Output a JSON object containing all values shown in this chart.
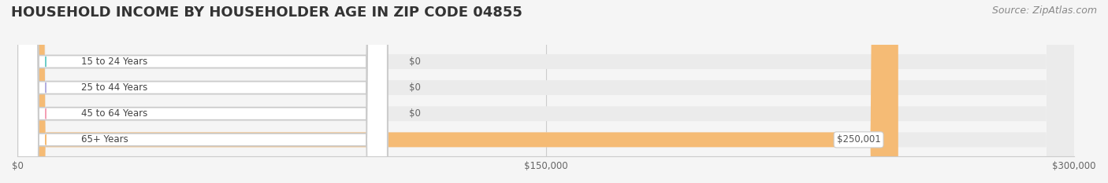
{
  "title": "HOUSEHOLD INCOME BY HOUSEHOLDER AGE IN ZIP CODE 04855",
  "source": "Source: ZipAtlas.com",
  "categories": [
    "15 to 24 Years",
    "25 to 44 Years",
    "45 to 64 Years",
    "65+ Years"
  ],
  "values": [
    0,
    0,
    0,
    250001
  ],
  "bar_colors": [
    "#6dcdc8",
    "#b3aee0",
    "#f4a0b5",
    "#f5bb75"
  ],
  "label_colors": [
    "#6dcdc8",
    "#b3aee0",
    "#f4a0b5",
    "#f5bb75"
  ],
  "xlim": [
    0,
    300000
  ],
  "xticks": [
    0,
    150000,
    300000
  ],
  "xtick_labels": [
    "$0",
    "$150,000",
    "$300,000"
  ],
  "background_color": "#f5f5f5",
  "bar_bg_color": "#ebebeb",
  "title_fontsize": 13,
  "source_fontsize": 9,
  "bar_height": 0.55,
  "value_label_250001": "$250,001"
}
